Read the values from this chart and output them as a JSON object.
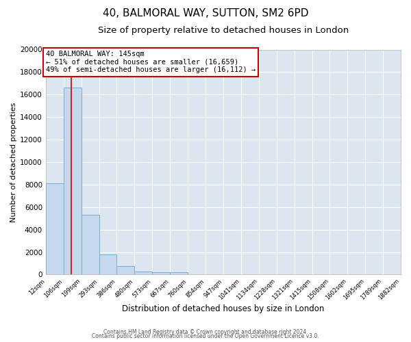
{
  "title": "40, BALMORAL WAY, SUTTON, SM2 6PD",
  "subtitle": "Size of property relative to detached houses in London",
  "xlabel": "Distribution of detached houses by size in London",
  "ylabel": "Number of detached properties",
  "bin_labels": [
    "12sqm",
    "106sqm",
    "199sqm",
    "293sqm",
    "386sqm",
    "480sqm",
    "573sqm",
    "667sqm",
    "760sqm",
    "854sqm",
    "947sqm",
    "1041sqm",
    "1134sqm",
    "1228sqm",
    "1321sqm",
    "1415sqm",
    "1508sqm",
    "1602sqm",
    "1695sqm",
    "1789sqm",
    "1882sqm"
  ],
  "bin_edges": [
    12,
    106,
    199,
    293,
    386,
    480,
    573,
    667,
    760,
    854,
    947,
    1041,
    1134,
    1228,
    1321,
    1415,
    1508,
    1602,
    1695,
    1789,
    1882
  ],
  "bar_heights": [
    8100,
    16600,
    5300,
    1800,
    750,
    300,
    200,
    200,
    0,
    0,
    0,
    0,
    0,
    0,
    0,
    0,
    0,
    0,
    0,
    0
  ],
  "bar_color": "#c5d8ed",
  "bar_edge_color": "#7aadce",
  "bg_color": "#dce6f0",
  "grid_color": "#ffffff",
  "property_size": 145,
  "property_line_color": "#cc0000",
  "annotation_title": "40 BALMORAL WAY: 145sqm",
  "annotation_line1": "← 51% of detached houses are smaller (16,659)",
  "annotation_line2": "49% of semi-detached houses are larger (16,112) →",
  "annotation_border_color": "#cc0000",
  "ylim": [
    0,
    20000
  ],
  "yticks": [
    0,
    2000,
    4000,
    6000,
    8000,
    10000,
    12000,
    14000,
    16000,
    18000,
    20000
  ],
  "footer1": "Contains HM Land Registry data © Crown copyright and database right 2024.",
  "footer2": "Contains public sector information licensed under the Open Government Licence v3.0.",
  "title_fontsize": 11,
  "subtitle_fontsize": 9.5
}
